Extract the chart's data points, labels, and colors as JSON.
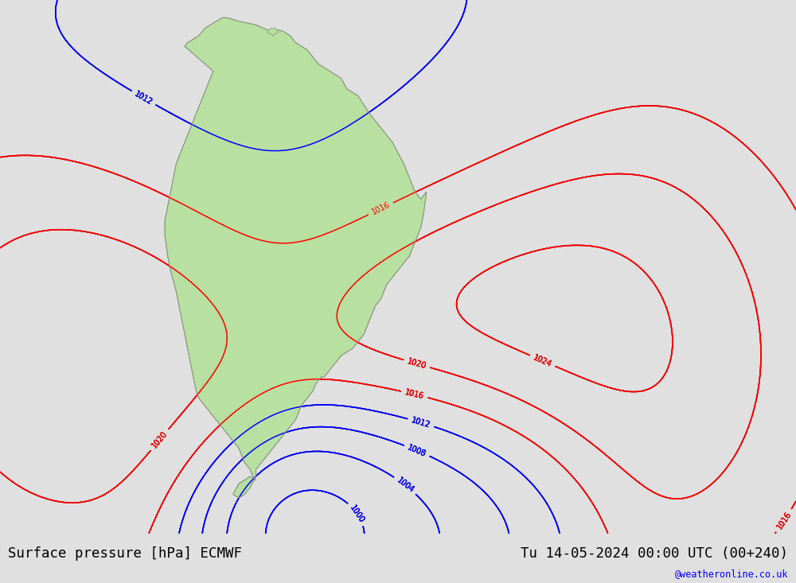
{
  "title_left": "Surface pressure [hPa] ECMWF",
  "title_right": "Tu 14-05-2024 00:00 UTC (00+240)",
  "watermark": "@weatheronline.co.uk",
  "background_color": "#e0e0e0",
  "land_color": "#b8e0a0",
  "fig_width": 10.0,
  "fig_height": 7.33,
  "dpi": 100,
  "bottom_bar_height": 0.085
}
